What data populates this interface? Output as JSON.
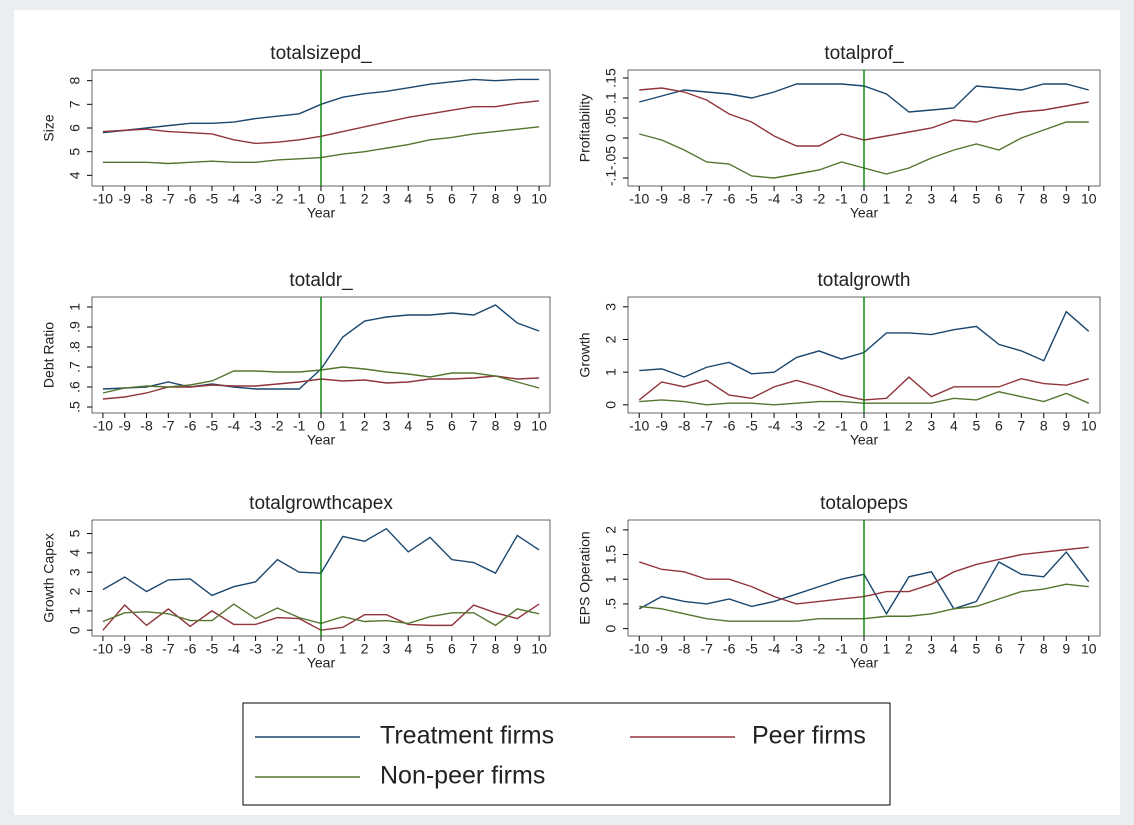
{
  "chart_data": [
    {
      "type": "line",
      "title": "totalsizepd_",
      "xlabel": "Year",
      "ylabel": "Size",
      "x": [
        -10,
        -9,
        -8,
        -7,
        -6,
        -5,
        -4,
        -3,
        -2,
        -1,
        0,
        1,
        2,
        3,
        4,
        5,
        6,
        7,
        8,
        9,
        10
      ],
      "xlim": [
        -10.5,
        10.5
      ],
      "xticks": [
        -10,
        -9,
        -8,
        -7,
        -6,
        -5,
        -4,
        -3,
        -2,
        -1,
        0,
        1,
        2,
        3,
        4,
        5,
        6,
        7,
        8,
        9,
        10
      ],
      "ylim": [
        3.55,
        8.45
      ],
      "yticks": [
        4,
        5,
        6,
        7,
        8
      ],
      "vline": 0,
      "vline_color": "#008000",
      "series": [
        {
          "color": "#1a476f",
          "values": [
            5.8,
            5.9,
            6.0,
            6.1,
            6.2,
            6.2,
            6.25,
            6.4,
            6.5,
            6.6,
            7.0,
            7.3,
            7.45,
            7.55,
            7.7,
            7.85,
            7.95,
            8.05,
            8.0,
            8.05,
            8.05
          ]
        },
        {
          "color": "#90353b",
          "values": [
            5.85,
            5.9,
            5.95,
            5.85,
            5.8,
            5.75,
            5.5,
            5.35,
            5.4,
            5.5,
            5.65,
            5.85,
            6.05,
            6.25,
            6.45,
            6.6,
            6.75,
            6.9,
            6.9,
            7.05,
            7.15
          ]
        },
        {
          "color": "#55752f",
          "values": [
            4.55,
            4.55,
            4.55,
            4.5,
            4.55,
            4.6,
            4.55,
            4.55,
            4.65,
            4.7,
            4.75,
            4.9,
            5.0,
            5.15,
            5.3,
            5.5,
            5.6,
            5.75,
            5.85,
            5.95,
            6.05
          ]
        }
      ]
    },
    {
      "type": "line",
      "title": "totalprof_",
      "xlabel": "Year",
      "ylabel": "Profitability",
      "x": [
        -10,
        -9,
        -8,
        -7,
        -6,
        -5,
        -4,
        -3,
        -2,
        -1,
        0,
        1,
        2,
        3,
        4,
        5,
        6,
        7,
        8,
        9,
        10
      ],
      "xlim": [
        -10.5,
        10.5
      ],
      "xticks": [
        -10,
        -9,
        -8,
        -7,
        -6,
        -5,
        -4,
        -3,
        -2,
        -1,
        0,
        1,
        2,
        3,
        4,
        5,
        6,
        7,
        8,
        9,
        10
      ],
      "ylim": [
        -0.12,
        0.17
      ],
      "yticks": [
        {
          "value": -0.1,
          "label": "-.1"
        },
        {
          "value": -0.05,
          "label": "-.05"
        },
        0,
        {
          "value": 0.05,
          "label": ".05"
        },
        {
          "value": 0.1,
          "label": ".1"
        },
        {
          "value": 0.15,
          "label": ".15"
        }
      ],
      "vline": 0,
      "vline_color": "#008000",
      "series": [
        {
          "color": "#1a476f",
          "values": [
            0.09,
            0.105,
            0.12,
            0.115,
            0.11,
            0.1,
            0.115,
            0.135,
            0.135,
            0.135,
            0.13,
            0.11,
            0.065,
            0.07,
            0.075,
            0.13,
            0.125,
            0.12,
            0.135,
            0.135,
            0.12
          ]
        },
        {
          "color": "#90353b",
          "values": [
            0.12,
            0.125,
            0.115,
            0.095,
            0.06,
            0.04,
            0.005,
            -0.02,
            -0.02,
            0.01,
            -0.005,
            0.005,
            0.015,
            0.025,
            0.045,
            0.04,
            0.055,
            0.065,
            0.07,
            0.08,
            0.09
          ]
        },
        {
          "color": "#55752f",
          "values": [
            0.01,
            -0.005,
            -0.03,
            -0.06,
            -0.065,
            -0.095,
            -0.1,
            -0.09,
            -0.08,
            -0.06,
            -0.075,
            -0.09,
            -0.075,
            -0.05,
            -0.03,
            -0.015,
            -0.03,
            0.0,
            0.02,
            0.04,
            0.04
          ]
        }
      ]
    },
    {
      "type": "line",
      "title": "totaldr_",
      "xlabel": "Year",
      "ylabel": "Debt Ratio",
      "x": [
        -10,
        -9,
        -8,
        -7,
        -6,
        -5,
        -4,
        -3,
        -2,
        -1,
        0,
        1,
        2,
        3,
        4,
        5,
        6,
        7,
        8,
        9,
        10
      ],
      "xlim": [
        -10.5,
        10.5
      ],
      "xticks": [
        -10,
        -9,
        -8,
        -7,
        -6,
        -5,
        -4,
        -3,
        -2,
        -1,
        0,
        1,
        2,
        3,
        4,
        5,
        6,
        7,
        8,
        9,
        10
      ],
      "ylim": [
        0.47,
        1.05
      ],
      "yticks": [
        {
          "value": 0.5,
          "label": ".5"
        },
        {
          "value": 0.6,
          "label": ".6"
        },
        {
          "value": 0.7,
          "label": ".7"
        },
        {
          "value": 0.8,
          "label": ".8"
        },
        {
          "value": 0.9,
          "label": ".9"
        },
        1
      ],
      "vline": 0,
      "vline_color": "#008000",
      "series": [
        {
          "color": "#1a476f",
          "values": [
            0.59,
            0.595,
            0.6,
            0.625,
            0.6,
            0.615,
            0.6,
            0.59,
            0.59,
            0.59,
            0.69,
            0.85,
            0.93,
            0.95,
            0.96,
            0.96,
            0.97,
            0.96,
            1.01,
            0.92,
            0.88
          ]
        },
        {
          "color": "#90353b",
          "values": [
            0.54,
            0.55,
            0.57,
            0.6,
            0.6,
            0.61,
            0.605,
            0.605,
            0.615,
            0.625,
            0.64,
            0.63,
            0.635,
            0.62,
            0.625,
            0.64,
            0.64,
            0.645,
            0.655,
            0.64,
            0.645
          ]
        },
        {
          "color": "#55752f",
          "values": [
            0.57,
            0.595,
            0.605,
            0.6,
            0.61,
            0.63,
            0.68,
            0.68,
            0.675,
            0.675,
            0.685,
            0.7,
            0.69,
            0.675,
            0.665,
            0.65,
            0.67,
            0.67,
            0.655,
            0.625,
            0.595
          ]
        }
      ]
    },
    {
      "type": "line",
      "title": "totalgrowth",
      "xlabel": "Year",
      "ylabel": "Growth",
      "x": [
        -10,
        -9,
        -8,
        -7,
        -6,
        -5,
        -4,
        -3,
        -2,
        -1,
        0,
        1,
        2,
        3,
        4,
        5,
        6,
        7,
        8,
        9,
        10
      ],
      "xlim": [
        -10.5,
        10.5
      ],
      "xticks": [
        -10,
        -9,
        -8,
        -7,
        -6,
        -5,
        -4,
        -3,
        -2,
        -1,
        0,
        1,
        2,
        3,
        4,
        5,
        6,
        7,
        8,
        9,
        10
      ],
      "ylim": [
        -0.25,
        3.3
      ],
      "yticks": [
        0,
        1,
        2,
        3
      ],
      "vline": 0,
      "vline_color": "#008000",
      "series": [
        {
          "color": "#1a476f",
          "values": [
            1.05,
            1.1,
            0.85,
            1.15,
            1.3,
            0.95,
            1.0,
            1.45,
            1.65,
            1.4,
            1.6,
            2.2,
            2.2,
            2.15,
            2.3,
            2.4,
            1.85,
            1.65,
            1.35,
            2.85,
            2.25
          ]
        },
        {
          "color": "#90353b",
          "values": [
            0.15,
            0.7,
            0.55,
            0.75,
            0.3,
            0.2,
            0.55,
            0.75,
            0.55,
            0.3,
            0.15,
            0.2,
            0.85,
            0.25,
            0.55,
            0.55,
            0.55,
            0.8,
            0.65,
            0.6,
            0.8
          ]
        },
        {
          "color": "#55752f",
          "values": [
            0.1,
            0.15,
            0.1,
            0.0,
            0.05,
            0.05,
            0.0,
            0.05,
            0.1,
            0.1,
            0.05,
            0.05,
            0.05,
            0.05,
            0.2,
            0.15,
            0.4,
            0.25,
            0.1,
            0.35,
            0.05
          ]
        }
      ]
    },
    {
      "type": "line",
      "title": "totalgrowthcapex",
      "xlabel": "Year",
      "ylabel": "Growth Capex",
      "x": [
        -10,
        -9,
        -8,
        -7,
        -6,
        -5,
        -4,
        -3,
        -2,
        -1,
        0,
        1,
        2,
        3,
        4,
        5,
        6,
        7,
        8,
        9,
        10
      ],
      "xlim": [
        -10.5,
        10.5
      ],
      "xticks": [
        -10,
        -9,
        -8,
        -7,
        -6,
        -5,
        -4,
        -3,
        -2,
        -1,
        0,
        1,
        2,
        3,
        4,
        5,
        6,
        7,
        8,
        9,
        10
      ],
      "ylim": [
        -0.3,
        5.7
      ],
      "yticks": [
        0,
        1,
        2,
        3,
        4,
        5
      ],
      "vline": 0,
      "vline_color": "#008000",
      "series": [
        {
          "color": "#1a476f",
          "values": [
            2.1,
            2.75,
            2.0,
            2.6,
            2.65,
            1.8,
            2.25,
            2.5,
            3.65,
            3.0,
            2.95,
            4.85,
            4.6,
            5.25,
            4.05,
            4.8,
            3.65,
            3.5,
            2.95,
            4.9,
            4.15
          ]
        },
        {
          "color": "#90353b",
          "values": [
            0.0,
            1.3,
            0.25,
            1.1,
            0.2,
            1.0,
            0.3,
            0.3,
            0.65,
            0.6,
            0.0,
            0.15,
            0.8,
            0.8,
            0.3,
            0.25,
            0.25,
            1.3,
            0.9,
            0.6,
            1.35
          ]
        },
        {
          "color": "#55752f",
          "values": [
            0.45,
            0.9,
            0.95,
            0.85,
            0.5,
            0.5,
            1.35,
            0.6,
            1.15,
            0.65,
            0.35,
            0.7,
            0.45,
            0.5,
            0.35,
            0.7,
            0.9,
            0.9,
            0.25,
            1.1,
            0.85
          ]
        }
      ]
    },
    {
      "type": "line",
      "title": "totalopeps",
      "xlabel": "Year",
      "ylabel": "EPS Operation",
      "x": [
        -10,
        -9,
        -8,
        -7,
        -6,
        -5,
        -4,
        -3,
        -2,
        -1,
        0,
        1,
        2,
        3,
        4,
        5,
        6,
        7,
        8,
        9,
        10
      ],
      "xlim": [
        -10.5,
        10.5
      ],
      "xticks": [
        -10,
        -9,
        -8,
        -7,
        -6,
        -5,
        -4,
        -3,
        -2,
        -1,
        0,
        1,
        2,
        3,
        4,
        5,
        6,
        7,
        8,
        9,
        10
      ],
      "ylim": [
        -0.15,
        2.2
      ],
      "yticks": [
        0,
        {
          "value": 0.5,
          "label": ".5"
        },
        1,
        1.5,
        2
      ],
      "vline": 0,
      "vline_color": "#008000",
      "series": [
        {
          "color": "#1a476f",
          "values": [
            0.4,
            0.65,
            0.55,
            0.5,
            0.6,
            0.45,
            0.55,
            0.7,
            0.85,
            1.0,
            1.1,
            0.3,
            1.05,
            1.15,
            0.4,
            0.55,
            1.35,
            1.1,
            1.05,
            1.55,
            0.95
          ]
        },
        {
          "color": "#90353b",
          "values": [
            1.35,
            1.2,
            1.15,
            1.0,
            1.0,
            0.85,
            0.65,
            0.5,
            0.55,
            0.6,
            0.65,
            0.75,
            0.75,
            0.9,
            1.15,
            1.3,
            1.4,
            1.5,
            1.55,
            1.6,
            1.65
          ]
        },
        {
          "color": "#55752f",
          "values": [
            0.45,
            0.4,
            0.3,
            0.2,
            0.15,
            0.15,
            0.15,
            0.15,
            0.2,
            0.2,
            0.2,
            0.25,
            0.25,
            0.3,
            0.4,
            0.45,
            0.6,
            0.75,
            0.8,
            0.9,
            0.85
          ]
        }
      ]
    }
  ],
  "legend": {
    "items": [
      "Treatment firms",
      "Peer firms",
      "Non-peer firms"
    ]
  }
}
